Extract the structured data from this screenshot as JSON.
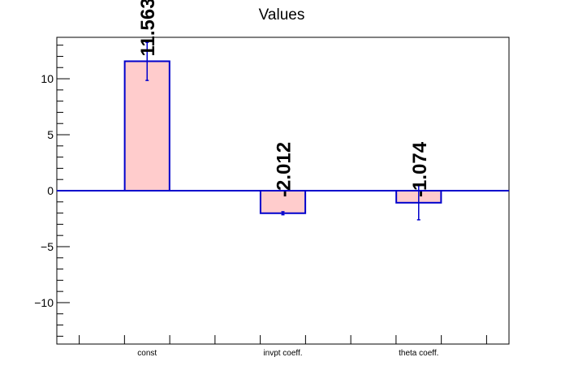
{
  "chart_data": {
    "type": "bar",
    "title": "Values",
    "xlabel": "",
    "ylabel": "",
    "categories": [
      "const",
      "invpt coeff.",
      "theta coeff."
    ],
    "values": [
      11.563,
      -2.012,
      -1.074
    ],
    "value_labels": [
      "11.563",
      "-2.012",
      "-1.074"
    ],
    "error_low": [
      9.85,
      -2.15,
      -2.6
    ],
    "error_high": [
      13.25,
      -1.88,
      0.45
    ],
    "ylim": [
      -13.7,
      13.7
    ],
    "yticks": [
      -10,
      -5,
      0,
      5,
      10
    ],
    "ytick_labels": [
      "−10",
      "−5",
      "0",
      "5",
      "10"
    ],
    "grid": false,
    "legend": "none",
    "colors": {
      "bar_fill": "#ffcccc",
      "bar_edge": "#0000cc",
      "zero_line": "#0000cc",
      "error_bar": "#0000cc",
      "axis": "#000000"
    }
  }
}
